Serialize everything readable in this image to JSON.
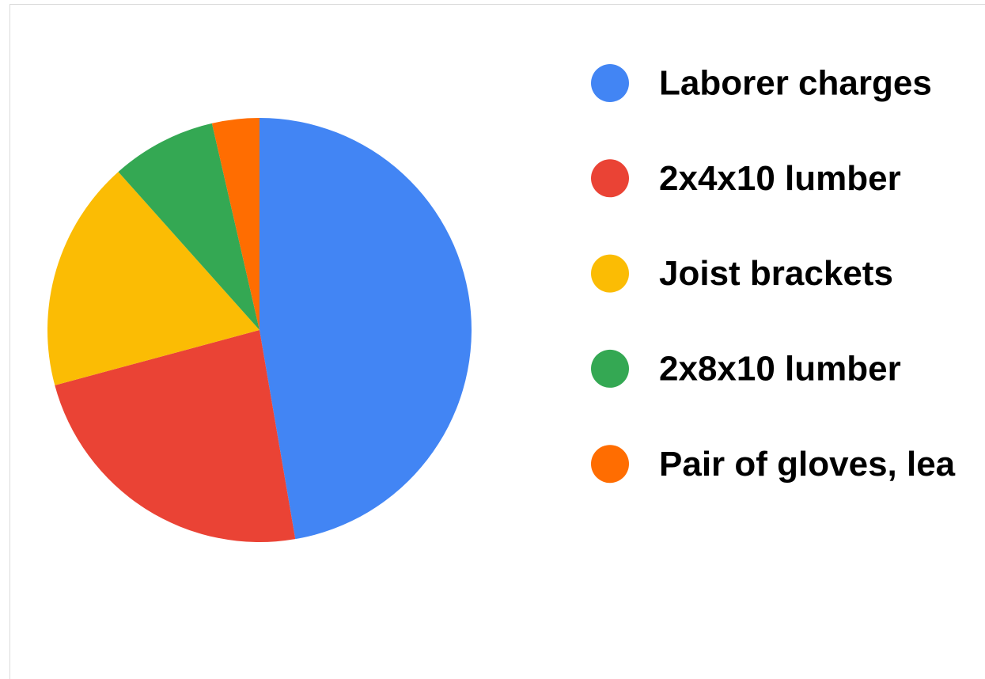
{
  "chart_data": {
    "type": "pie",
    "categories": [
      "Laborer charges",
      "2x4x10 lumber",
      "Joist brackets",
      "2x8x10 lumber",
      "Pair of gloves, lea"
    ],
    "values": [
      47.3,
      23.5,
      17.6,
      8.0,
      3.6
    ],
    "colors": [
      "#4285f4",
      "#ea4335",
      "#fbbc04",
      "#34a853",
      "#ff6d01"
    ],
    "legend": "right"
  }
}
